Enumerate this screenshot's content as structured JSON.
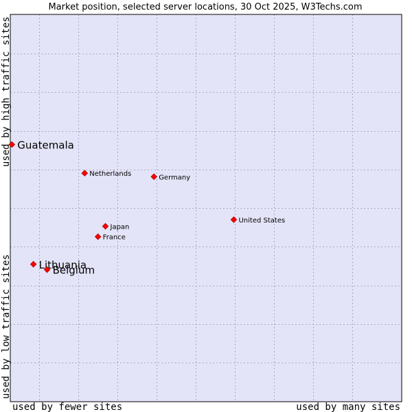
{
  "chart_data": {
    "type": "scatter",
    "title": "Market position, selected server locations, 30 Oct 2025, W3Techs.com",
    "xlabel_left": "used by fewer sites",
    "xlabel_right": "used by many sites",
    "ylabel_bottom": "used by low traffic sites",
    "ylabel_top": "used by high traffic sites",
    "xlim": [
      0,
      100
    ],
    "ylim": [
      0,
      100
    ],
    "grid": true,
    "colors": {
      "background": "#e4e4f8",
      "point": "#ff0000",
      "grid": "#a8a8c8"
    },
    "points": [
      {
        "name": "Guatemala",
        "x": 0.4,
        "y": 66.4,
        "label_size": "large"
      },
      {
        "name": "Netherlands",
        "x": 19.0,
        "y": 59.0,
        "label_size": "small"
      },
      {
        "name": "Germany",
        "x": 36.7,
        "y": 58.1,
        "label_size": "small"
      },
      {
        "name": "United States",
        "x": 57.1,
        "y": 47.0,
        "label_size": "small"
      },
      {
        "name": "Japan",
        "x": 24.3,
        "y": 45.3,
        "label_size": "small"
      },
      {
        "name": "France",
        "x": 22.4,
        "y": 42.6,
        "label_size": "small"
      },
      {
        "name": "Lithuania",
        "x": 5.9,
        "y": 35.5,
        "label_size": "large"
      },
      {
        "name": "Belgium",
        "x": 9.4,
        "y": 34.1,
        "label_size": "large"
      }
    ]
  }
}
